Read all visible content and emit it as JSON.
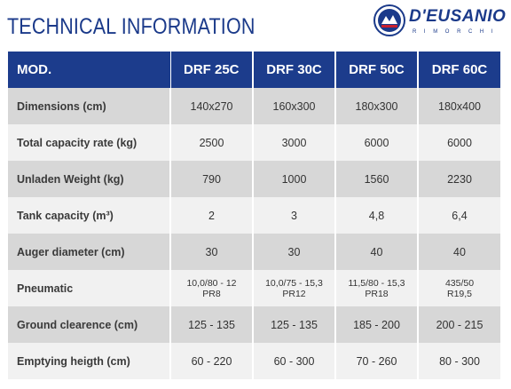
{
  "page": {
    "title": "TECHNICAL INFORMATION"
  },
  "logo": {
    "name": "D'EUSANIO",
    "sub": "RIMORCHI",
    "colors": {
      "primary": "#1b3a8a",
      "accent": "#c8202f"
    }
  },
  "table": {
    "header": [
      "MOD.",
      "DRF 25C",
      "DRF 30C",
      "DRF 50C",
      "DRF 60C"
    ],
    "rows": [
      {
        "label": "Dimensions (cm)",
        "values": [
          "140x270",
          "160x300",
          "180x300",
          "180x400"
        ]
      },
      {
        "label": "Total capacity rate (kg)",
        "values": [
          "2500",
          "3000",
          "6000",
          "6000"
        ]
      },
      {
        "label": "Unladen Weight (kg)",
        "values": [
          "790",
          "1000",
          "1560",
          "2230"
        ]
      },
      {
        "label": "Tank capacity (m³)",
        "values": [
          "2",
          "3",
          "4,8",
          "6,4"
        ]
      },
      {
        "label": "Auger diameter (cm)",
        "values": [
          "30",
          "30",
          "40",
          "40"
        ]
      },
      {
        "label": "Pneumatic",
        "values": [
          [
            "10,0/80 - 12",
            "PR8"
          ],
          [
            "10,0/75 - 15,3",
            "PR12"
          ],
          [
            "11,5/80 - 15,3",
            "PR18"
          ],
          [
            "435/50",
            "R19,5"
          ]
        ]
      },
      {
        "label": "Ground clearence (cm)",
        "values": [
          "125 - 135",
          "125 - 135",
          "185 - 200",
          "200 - 215"
        ]
      },
      {
        "label": "Emptying heigth (cm)",
        "values": [
          "60 - 220",
          "60 - 300",
          "70 - 260",
          "80 - 300"
        ]
      }
    ],
    "colors": {
      "header_bg": "#1c3c8c",
      "row_dark": "#d7d7d7",
      "row_light": "#f1f1f1"
    }
  }
}
